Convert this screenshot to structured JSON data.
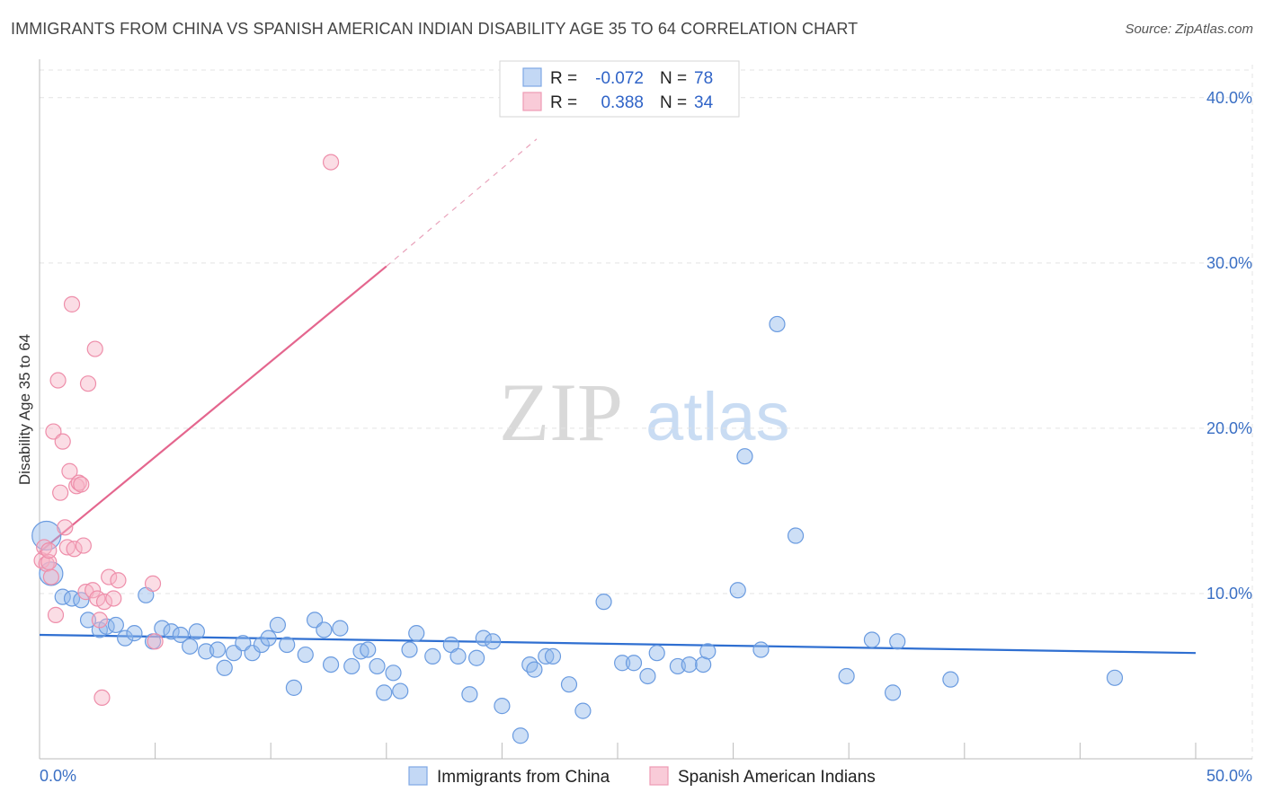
{
  "chart_data": {
    "type": "scatter",
    "title": "IMMIGRANTS FROM CHINA VS SPANISH AMERICAN INDIAN DISABILITY AGE 35 TO 64 CORRELATION CHART",
    "source": "Source: ZipAtlas.com",
    "xlabel": "",
    "ylabel": "Disability Age 35 to 64",
    "xlim": [
      0,
      50
    ],
    "ylim": [
      0,
      42
    ],
    "x_tick_labels": [
      "0.0%",
      "50.0%"
    ],
    "y_ticks": [
      10,
      20,
      30,
      40
    ],
    "y_tick_labels": [
      "10.0%",
      "20.0%",
      "30.0%",
      "40.0%"
    ],
    "watermark": {
      "part1": "ZIP",
      "part2": "atlas"
    },
    "legend": {
      "rows": [
        {
          "r_label": "R =",
          "r_value": "-0.072",
          "n_label": "N =",
          "n_value": "78"
        },
        {
          "r_label": "R =",
          "r_value": "0.388",
          "n_label": "N =",
          "n_value": "34"
        }
      ]
    },
    "series": [
      {
        "name": "Immigrants from China",
        "color": "#90b8ec",
        "stroke": "#6a9be0",
        "trend_color": "#2f6fd1",
        "trend": {
          "x0": 0,
          "y0": 7.5,
          "x1": 50,
          "y1": 6.4
        },
        "points": [
          [
            0.3,
            13.5
          ],
          [
            0.5,
            11.2
          ],
          [
            1.0,
            9.8
          ],
          [
            1.4,
            9.7
          ],
          [
            1.8,
            9.6
          ],
          [
            2.1,
            8.4
          ],
          [
            2.6,
            7.8
          ],
          [
            2.9,
            8.0
          ],
          [
            3.3,
            8.1
          ],
          [
            3.7,
            7.3
          ],
          [
            4.1,
            7.6
          ],
          [
            4.6,
            9.9
          ],
          [
            4.9,
            7.1
          ],
          [
            5.3,
            7.9
          ],
          [
            5.7,
            7.7
          ],
          [
            6.1,
            7.5
          ],
          [
            6.5,
            6.8
          ],
          [
            6.8,
            7.7
          ],
          [
            7.2,
            6.5
          ],
          [
            7.7,
            6.6
          ],
          [
            8.0,
            5.5
          ],
          [
            8.4,
            6.4
          ],
          [
            8.8,
            7.0
          ],
          [
            9.2,
            6.4
          ],
          [
            9.6,
            6.9
          ],
          [
            9.9,
            7.3
          ],
          [
            10.3,
            8.1
          ],
          [
            10.7,
            6.9
          ],
          [
            11.0,
            4.3
          ],
          [
            11.5,
            6.3
          ],
          [
            11.9,
            8.4
          ],
          [
            12.3,
            7.8
          ],
          [
            12.6,
            5.7
          ],
          [
            13.0,
            7.9
          ],
          [
            13.5,
            5.6
          ],
          [
            13.9,
            6.5
          ],
          [
            14.2,
            6.6
          ],
          [
            14.6,
            5.6
          ],
          [
            14.9,
            4.0
          ],
          [
            15.3,
            5.2
          ],
          [
            15.6,
            4.1
          ],
          [
            16.0,
            6.6
          ],
          [
            16.3,
            7.6
          ],
          [
            17.0,
            6.2
          ],
          [
            17.8,
            6.9
          ],
          [
            18.1,
            6.2
          ],
          [
            18.6,
            3.9
          ],
          [
            18.9,
            6.1
          ],
          [
            19.2,
            7.3
          ],
          [
            19.6,
            7.1
          ],
          [
            20.0,
            3.2
          ],
          [
            20.8,
            1.4
          ],
          [
            21.2,
            5.7
          ],
          [
            21.4,
            5.4
          ],
          [
            21.9,
            6.2
          ],
          [
            22.2,
            6.2
          ],
          [
            22.9,
            4.5
          ],
          [
            23.5,
            2.9
          ],
          [
            24.4,
            9.5
          ],
          [
            25.2,
            5.8
          ],
          [
            25.7,
            5.8
          ],
          [
            26.3,
            5.0
          ],
          [
            26.7,
            6.4
          ],
          [
            27.6,
            5.6
          ],
          [
            28.1,
            5.7
          ],
          [
            28.7,
            5.7
          ],
          [
            28.9,
            6.5
          ],
          [
            30.2,
            10.2
          ],
          [
            30.5,
            18.3
          ],
          [
            31.2,
            6.6
          ],
          [
            31.9,
            26.3
          ],
          [
            32.7,
            13.5
          ],
          [
            34.9,
            5.0
          ],
          [
            36.0,
            7.2
          ],
          [
            36.9,
            4.0
          ],
          [
            37.1,
            7.1
          ],
          [
            39.4,
            4.8
          ],
          [
            46.5,
            4.9
          ]
        ]
      },
      {
        "name": "Spanish American Indians",
        "color": "#f6b3c6",
        "stroke": "#ee8eaa",
        "trend_color": "#e4668e",
        "trend": {
          "x0": 0,
          "y0": 12.5,
          "x1": 15.0,
          "y1": 29.8
        },
        "trend_dashed": {
          "x0": 15.0,
          "y0": 29.8,
          "x1": 21.5,
          "y1": 37.5
        },
        "points": [
          [
            0.1,
            12.0
          ],
          [
            0.2,
            12.8
          ],
          [
            0.3,
            11.8
          ],
          [
            0.4,
            11.9
          ],
          [
            0.5,
            11.0
          ],
          [
            0.6,
            19.8
          ],
          [
            0.7,
            8.7
          ],
          [
            0.8,
            22.9
          ],
          [
            0.9,
            16.1
          ],
          [
            1.0,
            19.2
          ],
          [
            1.1,
            14.0
          ],
          [
            1.2,
            12.8
          ],
          [
            1.3,
            17.4
          ],
          [
            1.4,
            27.5
          ],
          [
            1.5,
            12.7
          ],
          [
            1.6,
            16.5
          ],
          [
            1.7,
            16.7
          ],
          [
            1.8,
            16.6
          ],
          [
            1.9,
            12.9
          ],
          [
            2.0,
            10.1
          ],
          [
            2.1,
            22.7
          ],
          [
            2.3,
            10.2
          ],
          [
            2.4,
            24.8
          ],
          [
            2.5,
            9.7
          ],
          [
            2.6,
            8.4
          ],
          [
            2.7,
            3.7
          ],
          [
            2.8,
            9.5
          ],
          [
            3.0,
            11.0
          ],
          [
            3.2,
            9.7
          ],
          [
            3.4,
            10.8
          ],
          [
            4.9,
            10.6
          ],
          [
            5.0,
            7.1
          ],
          [
            12.6,
            36.1
          ],
          [
            0.4,
            12.6
          ]
        ]
      }
    ]
  }
}
